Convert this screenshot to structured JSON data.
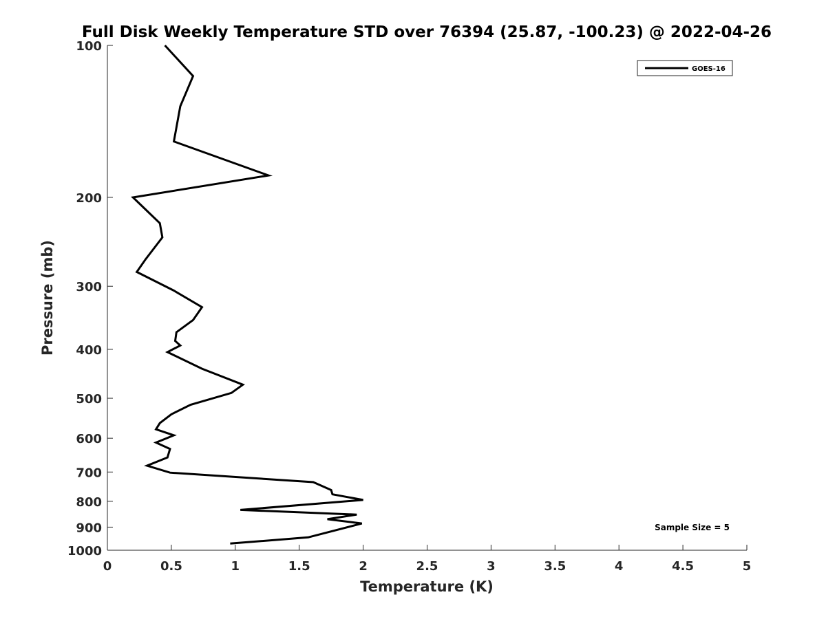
{
  "chart_data": {
    "type": "line",
    "title": "Full Disk Weekly Temperature STD over 76394 (25.87, -100.23) @ 2022-04-26",
    "xlabel": "Temperature (K)",
    "ylabel": "Pressure (mb)",
    "xlim": [
      0,
      5
    ],
    "ylim": [
      100,
      1000
    ],
    "y_scale": "log",
    "y_reversed": true,
    "x_ticks": [
      "0",
      "0.5",
      "1",
      "1.5",
      "2",
      "2.5",
      "3",
      "3.5",
      "4",
      "4.5",
      "5"
    ],
    "y_ticks": [
      "100",
      "200",
      "300",
      "400",
      "500",
      "600",
      "700",
      "800",
      "900",
      "1000"
    ],
    "grid": false,
    "legend_position": "top-right",
    "series": [
      {
        "name": "GOES-16",
        "color": "#000000",
        "x": [
          0.45,
          0.67,
          0.57,
          0.52,
          1.26,
          0.2,
          0.41,
          0.43,
          0.3,
          0.23,
          0.52,
          0.74,
          0.67,
          0.54,
          0.53,
          0.57,
          0.47,
          0.74,
          1.06,
          0.97,
          0.65,
          0.5,
          0.41,
          0.38,
          0.52,
          0.38,
          0.49,
          0.47,
          0.31,
          0.49,
          1.61,
          1.75,
          1.76,
          2.0,
          1.04,
          1.95,
          1.72,
          1.99,
          1.57,
          0.96
        ],
        "y": [
          100,
          115,
          132,
          155,
          181,
          200,
          225,
          240,
          265,
          281,
          306,
          330,
          350,
          370,
          385,
          393,
          405,
          437,
          470,
          488,
          515,
          538,
          560,
          576,
          592,
          612,
          630,
          655,
          680,
          702,
          733,
          760,
          775,
          795,
          832,
          850,
          868,
          885,
          943,
          970
        ]
      }
    ],
    "annotations": [
      "Sample Size = 5"
    ]
  }
}
